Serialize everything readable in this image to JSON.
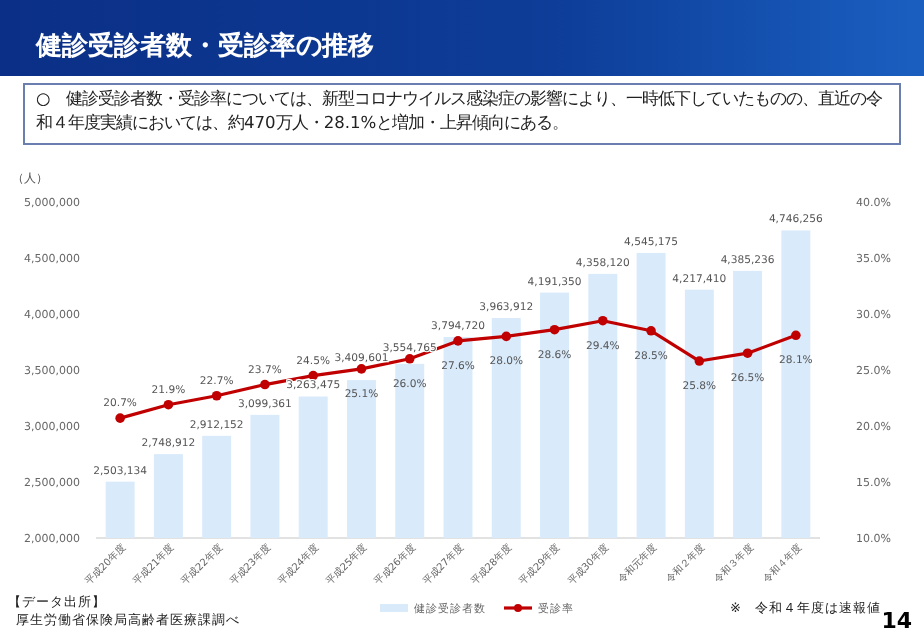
{
  "chart_data": {
    "type": "bar",
    "title": "健診受診者数・受診率の推移",
    "subtitle": "○　健診受診者数・受診率については、新型コロナウイルス感染症の影響により、一時低下していたものの、直近の令和４年度実績においては、約470万人・28.1%と増加・上昇傾向にある。",
    "ylabel": "（人）",
    "categories": [
      "平成20年度",
      "平成21年度",
      "平成22年度",
      "平成23年度",
      "平成24年度",
      "平成25年度",
      "平成26年度",
      "平成27年度",
      "平成28年度",
      "平成29年度",
      "平成30年度",
      "令和元年度",
      "令和２年度",
      "令和３年度",
      "令和４年度"
    ],
    "series": [
      {
        "name": "健診受診者数",
        "color": "#d9eafb",
        "values": [
          2503134,
          2748912,
          2912152,
          3099361,
          3263475,
          3409601,
          3554765,
          3794720,
          3963912,
          4191350,
          4358120,
          4545175,
          4217410,
          4385236,
          4746256
        ],
        "value_labels": [
          "2,503,134",
          "2,748,912",
          "2,912,152",
          "3,099,361",
          "3,263,475",
          "3,409,601",
          "3,554,765",
          "3,794,720",
          "3,963,912",
          "4,191,350",
          "4,358,120",
          "4,545,175",
          "4,217,410",
          "4,385,236",
          "4,746,256"
        ]
      },
      {
        "name": "受診率",
        "type": "line",
        "axis": "y2",
        "color": "#c00000",
        "values": [
          20.7,
          21.9,
          22.7,
          23.7,
          24.5,
          25.1,
          26.0,
          27.6,
          28.0,
          28.6,
          29.4,
          28.5,
          25.8,
          26.5,
          28.1
        ],
        "value_labels": [
          "20.7%",
          "21.9%",
          "22.7%",
          "23.7%",
          "24.5%",
          "25.1%",
          "26.0%",
          "27.6%",
          "28.0%",
          "28.6%",
          "29.4%",
          "28.5%",
          "25.8%",
          "26.5%",
          "28.1%"
        ]
      }
    ],
    "ylim": [
      2000000,
      5000000
    ],
    "yticks": [
      {
        "value": 2000000,
        "label": "2,000,000"
      },
      {
        "value": 2500000,
        "label": "2,500,000"
      },
      {
        "value": 3000000,
        "label": "3,000,000"
      },
      {
        "value": 3500000,
        "label": "3,500,000"
      },
      {
        "value": 4000000,
        "label": "4,000,000"
      },
      {
        "value": 4500000,
        "label": "4,500,000"
      },
      {
        "value": 5000000,
        "label": "5,000,000"
      }
    ],
    "y2lim": [
      10,
      40
    ],
    "y2ticks": [
      {
        "value": 10,
        "label": "10.0%"
      },
      {
        "value": 15,
        "label": "15.0%"
      },
      {
        "value": 20,
        "label": "20.0%"
      },
      {
        "value": 25,
        "label": "25.0%"
      },
      {
        "value": 30,
        "label": "30.0%"
      },
      {
        "value": 35,
        "label": "35.0%"
      },
      {
        "value": 40,
        "label": "40.0%"
      }
    ],
    "marker": "circle",
    "grid": false,
    "legend": "bottom",
    "annotations": [
      "【データ出所】",
      "厚生労働省保険局高齢者医療課調べ",
      "※　令和４年度は速報値",
      "14"
    ]
  }
}
